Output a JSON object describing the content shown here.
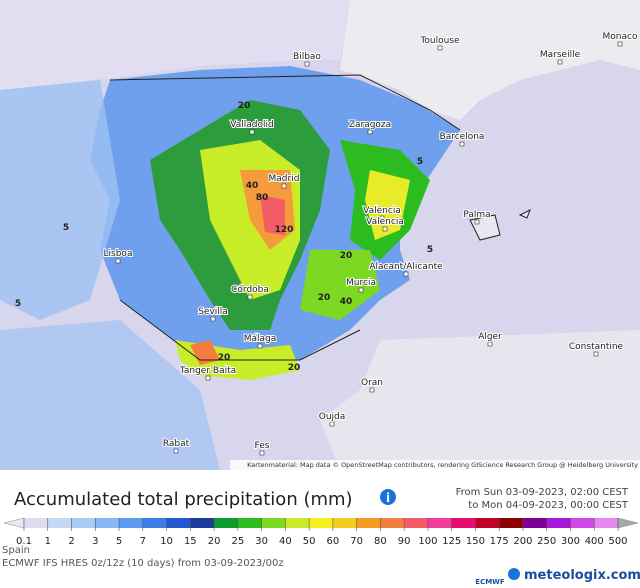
{
  "map": {
    "cities": [
      "Toulouse",
      "Monaco",
      "Marseille",
      "Bilbao",
      "Zaragoza",
      "Barcelona",
      "Valladolid",
      "Madrid",
      "València",
      "Valencia",
      "Palma",
      "Lisboa",
      "Alacant/Alicante",
      "Murcia",
      "Córdoba",
      "Sevilla",
      "Málaga",
      "Tanger Baita",
      "Alger",
      "Constantine",
      "Oran",
      "Oujda",
      "Rabat",
      "Fes"
    ],
    "contour_labels": [
      "120",
      "80",
      "40",
      "20",
      "20",
      "20",
      "5",
      "5",
      "5",
      "40",
      "20",
      "20",
      "5"
    ],
    "attribution": "Kartenmaterial: Map data © OpenStreetMap contributors, rendering GIScience Research Group @ Heidelberg University"
  },
  "title": "Accumulated total precipitation (mm)",
  "time_range": [
    "From Sun 03-09-2023, 02:00 CEST",
    "to Mon 04-09-2023, 00:00 CEST"
  ],
  "legend": {
    "labels": [
      "0.1",
      "1",
      "2",
      "3",
      "5",
      "7",
      "10",
      "15",
      "20",
      "25",
      "30",
      "40",
      "50",
      "60",
      "70",
      "80",
      "90",
      "100",
      "125",
      "150",
      "175",
      "200",
      "250",
      "300",
      "400",
      "500"
    ],
    "colors": [
      "#ece8f4",
      "#dcdcf0",
      "#c4d8f8",
      "#a8ccf8",
      "#88b8f4",
      "#5c9cf0",
      "#3c7ee8",
      "#2458d0",
      "#1c3c9c",
      "#0c9c30",
      "#2cbc20",
      "#7cd820",
      "#c8ec28",
      "#f4f020",
      "#f4cc20",
      "#f49c20",
      "#f47c3c",
      "#f45c68",
      "#f43c9c",
      "#e80c6c",
      "#c00024",
      "#8c0000",
      "#7c0094",
      "#a818d8",
      "#d048e8",
      "#e488f0",
      "#d8d8d8",
      "#a8a8a8"
    ]
  },
  "footer": {
    "region": "Spain",
    "model": "ECMWF IFS HRES 0z/12z (10 days) from 03-09-2023/00z",
    "logo": "ECMWF",
    "brand": "meteologix.com"
  }
}
